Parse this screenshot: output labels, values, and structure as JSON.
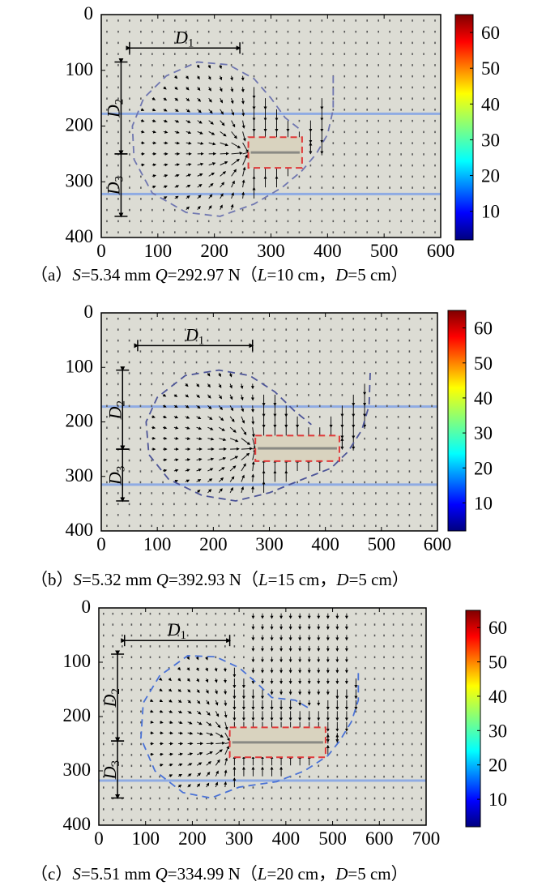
{
  "chart_data": [
    {
      "type": "vector-field",
      "panel": "a",
      "xlim": [
        0,
        600
      ],
      "ylim": [
        0,
        400
      ],
      "xticks": [
        "0",
        "100",
        "200",
        "300",
        "400",
        "500",
        "600"
      ],
      "yticks": [
        "0",
        "100",
        "200",
        "300",
        "400"
      ],
      "colorbar": {
        "range": [
          2,
          65
        ],
        "ticks": [
          "10",
          "20",
          "30",
          "40",
          "50",
          "60"
        ]
      },
      "pile": [
        260,
        220,
        355,
        275
      ],
      "blue_lines": [
        178,
        322
      ],
      "D1": {
        "label": "D",
        "sub": "1",
        "x": [
          50,
          245
        ],
        "y": 60
      },
      "D2": {
        "label": "D",
        "sub": "2",
        "y": [
          85,
          250
        ],
        "x": 35
      },
      "D3": {
        "label": "D",
        "sub": "3",
        "y": [
          250,
          362
        ],
        "x": 35
      },
      "boundary": [
        [
          410,
          110
        ],
        [
          410,
          170
        ],
        [
          400,
          215
        ],
        [
          380,
          250
        ],
        [
          355,
          280
        ],
        [
          320,
          310
        ],
        [
          270,
          340
        ],
        [
          210,
          362
        ],
        [
          150,
          355
        ],
        [
          90,
          320
        ],
        [
          58,
          260
        ],
        [
          55,
          200
        ],
        [
          75,
          150
        ],
        [
          115,
          110
        ],
        [
          170,
          85
        ],
        [
          225,
          90
        ],
        [
          270,
          115
        ],
        [
          300,
          150
        ],
        [
          325,
          185
        ],
        [
          350,
          205
        ]
      ],
      "boundary_color": "#6f76b0",
      "caption": [
        {
          "t": "（a）",
          "i": false
        },
        {
          "t": "S",
          "i": true
        },
        {
          "t": "=5.34 mm ",
          "i": false
        },
        {
          "t": "Q",
          "i": true
        },
        {
          "t": "=292.97 N（",
          "i": false
        },
        {
          "t": "L",
          "i": true
        },
        {
          "t": "=10 cm，",
          "i": false
        },
        {
          "t": "D",
          "i": true
        },
        {
          "t": "=5 cm）",
          "i": false
        }
      ]
    },
    {
      "type": "vector-field",
      "panel": "b",
      "xlim": [
        0,
        600
      ],
      "ylim": [
        0,
        400
      ],
      "xticks": [
        "0",
        "100",
        "200",
        "300",
        "400",
        "500",
        "600"
      ],
      "yticks": [
        "0",
        "100",
        "200",
        "300",
        "400"
      ],
      "colorbar": {
        "range": [
          2,
          65
        ],
        "ticks": [
          "10",
          "20",
          "30",
          "40",
          "50",
          "60"
        ]
      },
      "pile": [
        275,
        225,
        425,
        272
      ],
      "blue_lines": [
        172,
        315
      ],
      "D1": {
        "label": "D",
        "sub": "1",
        "x": [
          65,
          270
        ],
        "y": 60
      },
      "D2": {
        "label": "D",
        "sub": "2",
        "y": [
          105,
          250
        ],
        "x": 38
      },
      "D3": {
        "label": "D",
        "sub": "3",
        "y": [
          250,
          345
        ],
        "x": 38
      },
      "boundary": [
        [
          480,
          110
        ],
        [
          478,
          170
        ],
        [
          465,
          215
        ],
        [
          440,
          255
        ],
        [
          410,
          285
        ],
        [
          360,
          305
        ],
        [
          300,
          330
        ],
        [
          240,
          345
        ],
        [
          180,
          335
        ],
        [
          120,
          305
        ],
        [
          85,
          260
        ],
        [
          80,
          200
        ],
        [
          100,
          155
        ],
        [
          150,
          115
        ],
        [
          210,
          105
        ],
        [
          265,
          115
        ],
        [
          310,
          145
        ],
        [
          345,
          180
        ],
        [
          375,
          205
        ]
      ],
      "boundary_color": "#4d5598",
      "caption": [
        {
          "t": "（b）",
          "i": false
        },
        {
          "t": "S",
          "i": true
        },
        {
          "t": "=5.32 mm ",
          "i": false
        },
        {
          "t": "Q",
          "i": true
        },
        {
          "t": "=392.93 N（",
          "i": false
        },
        {
          "t": "L",
          "i": true
        },
        {
          "t": "=15 cm，",
          "i": false
        },
        {
          "t": "D",
          "i": true
        },
        {
          "t": "=5 cm）",
          "i": false
        }
      ]
    },
    {
      "type": "vector-field",
      "panel": "c",
      "xlim": [
        0,
        700
      ],
      "ylim": [
        0,
        400
      ],
      "xticks": [
        "0",
        "100",
        "200",
        "300",
        "400",
        "500",
        "600",
        "700"
      ],
      "yticks": [
        "0",
        "100",
        "200",
        "300",
        "400"
      ],
      "colorbar": {
        "range": [
          2,
          65
        ],
        "ticks": [
          "10",
          "20",
          "30",
          "40",
          "50",
          "60"
        ]
      },
      "pile": [
        280,
        220,
        485,
        275
      ],
      "blue_lines": [
        318
      ],
      "D1": {
        "label": "D",
        "sub": "1",
        "x": [
          55,
          280
        ],
        "y": 60
      },
      "D2": {
        "label": "D",
        "sub": "2",
        "y": [
          85,
          245
        ],
        "x": 40
      },
      "D3": {
        "label": "D",
        "sub": "3",
        "y": [
          245,
          350
        ],
        "x": 40
      },
      "boundary": [
        [
          555,
          120
        ],
        [
          555,
          170
        ],
        [
          540,
          210
        ],
        [
          515,
          245
        ],
        [
          490,
          272
        ],
        [
          440,
          300
        ],
        [
          380,
          320
        ],
        [
          300,
          330
        ],
        [
          240,
          350
        ],
        [
          180,
          340
        ],
        [
          120,
          300
        ],
        [
          90,
          240
        ],
        [
          95,
          175
        ],
        [
          130,
          125
        ],
        [
          190,
          88
        ],
        [
          250,
          90
        ],
        [
          300,
          110
        ],
        [
          340,
          140
        ],
        [
          370,
          165
        ],
        [
          420,
          170
        ],
        [
          450,
          185
        ]
      ],
      "boundary_color": "#4a72d6",
      "caption": [
        {
          "t": "（c）",
          "i": false
        },
        {
          "t": "S",
          "i": true
        },
        {
          "t": "=5.51 mm ",
          "i": false
        },
        {
          "t": "Q",
          "i": true
        },
        {
          "t": "=334.99 N（",
          "i": false
        },
        {
          "t": "L",
          "i": true
        },
        {
          "t": "=20 cm，",
          "i": false
        },
        {
          "t": "D",
          "i": true
        },
        {
          "t": "=5 cm）",
          "i": false
        }
      ]
    }
  ],
  "colors": {
    "background": "#dcdcd4",
    "pile_outline": "#e03a3a",
    "pile_fill": "#d9d3bf",
    "blue_line": "#8fabe3"
  }
}
